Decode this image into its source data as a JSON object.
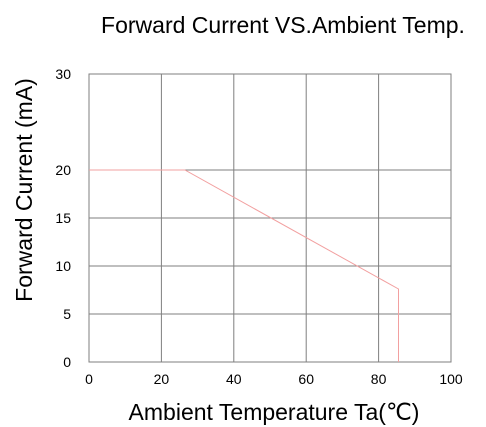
{
  "chart_data": {
    "type": "line",
    "title": "Forward Current VS.Ambient Temp.",
    "xlabel": "Ambient Temperature Ta(℃)",
    "ylabel": "Forward Current (mA)",
    "xlim": [
      0,
      100
    ],
    "ylim": [
      0,
      30
    ],
    "xticks": [
      0,
      20,
      40,
      60,
      80,
      100
    ],
    "yticks": [
      0,
      5,
      10,
      15,
      20,
      30
    ],
    "xtick_labels": [
      "0",
      "20",
      "40",
      "60",
      "80",
      "100"
    ],
    "ytick_labels": [
      "0",
      "5",
      "10",
      "15",
      "20",
      "30"
    ],
    "grid": true,
    "series": [
      {
        "color": "#f2a0a0",
        "x": [
          0,
          26.5,
          85.5,
          85.5
        ],
        "y": [
          20,
          20,
          7.6,
          0
        ]
      }
    ]
  }
}
